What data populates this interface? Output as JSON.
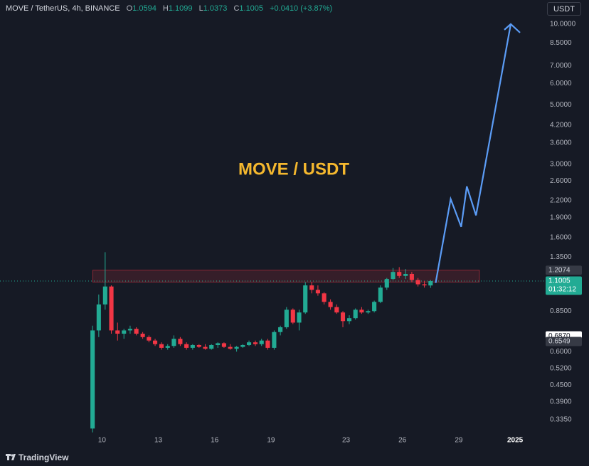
{
  "header": {
    "symbol": "MOVE / TetherUS, 4h, BINANCE",
    "fields": [
      {
        "key": "O",
        "value": "1.0594"
      },
      {
        "key": "H",
        "value": "1.1099"
      },
      {
        "key": "L",
        "value": "1.0373"
      },
      {
        "key": "C",
        "value": "1.1005"
      }
    ],
    "change": "+0.0410 (+3.87%)"
  },
  "currency": "USDT",
  "brand": "TradingView",
  "chart_data": {
    "type": "candlestick",
    "title": "MOVE / USDT",
    "log_scale": true,
    "grid": false,
    "up_color": "#22ab94",
    "down_color": "#f23645",
    "x": [
      9.5,
      9.83,
      10.17,
      10.5,
      10.83,
      11.17,
      11.5,
      11.83,
      12.17,
      12.5,
      12.83,
      13.17,
      13.5,
      13.83,
      14.17,
      14.5,
      14.83,
      15.17,
      15.5,
      15.83,
      16.17,
      16.5,
      16.83,
      17.17,
      17.5,
      17.83,
      18.17,
      18.5,
      18.83,
      19.17,
      19.5,
      19.83,
      20.17,
      20.5,
      20.83,
      21.17,
      21.5,
      21.83,
      22.17,
      22.5,
      22.83,
      23.17,
      23.5,
      23.83,
      24.17,
      24.5,
      24.83,
      25.17,
      25.5,
      25.83,
      26.17,
      26.5,
      26.83,
      27.17,
      27.5
    ],
    "open": [
      0.31,
      0.72,
      0.9,
      1.05,
      0.72,
      0.7,
      0.72,
      0.73,
      0.7,
      0.68,
      0.66,
      0.64,
      0.62,
      0.63,
      0.67,
      0.64,
      0.62,
      0.635,
      0.625,
      0.615,
      0.635,
      0.645,
      0.625,
      0.615,
      0.625,
      0.635,
      0.65,
      0.64,
      0.66,
      0.62,
      0.71,
      0.74,
      0.86,
      0.77,
      0.84,
      1.06,
      1.02,
      0.99,
      0.92,
      0.88,
      0.84,
      0.78,
      0.8,
      0.86,
      0.84,
      0.85,
      0.92,
      1.04,
      1.12,
      1.19,
      1.15,
      1.17,
      1.11,
      1.07,
      1.0594
    ],
    "high": [
      0.75,
      0.98,
      1.41,
      1.06,
      0.77,
      0.73,
      0.75,
      0.74,
      0.71,
      0.69,
      0.67,
      0.65,
      0.64,
      0.69,
      0.68,
      0.65,
      0.64,
      0.64,
      0.64,
      0.64,
      0.65,
      0.65,
      0.64,
      0.63,
      0.64,
      0.66,
      0.66,
      0.67,
      0.67,
      0.72,
      0.75,
      0.88,
      0.87,
      0.86,
      1.09,
      1.09,
      1.06,
      1.0,
      0.94,
      0.9,
      0.85,
      0.82,
      0.87,
      0.88,
      0.86,
      0.93,
      1.06,
      1.13,
      1.23,
      1.24,
      1.22,
      1.19,
      1.13,
      1.1,
      1.1099
    ],
    "low": [
      0.3,
      0.68,
      0.86,
      0.7,
      0.66,
      0.67,
      0.7,
      0.69,
      0.67,
      0.65,
      0.63,
      0.61,
      0.61,
      0.62,
      0.63,
      0.61,
      0.61,
      0.62,
      0.61,
      0.61,
      0.62,
      0.62,
      0.61,
      0.6,
      0.62,
      0.63,
      0.63,
      0.63,
      0.61,
      0.61,
      0.69,
      0.73,
      0.76,
      0.72,
      0.83,
      0.99,
      0.97,
      0.9,
      0.86,
      0.83,
      0.74,
      0.76,
      0.79,
      0.83,
      0.83,
      0.84,
      0.91,
      1.02,
      1.11,
      1.13,
      1.12,
      1.09,
      1.05,
      1.04,
      1.0373
    ],
    "close": [
      0.72,
      0.9,
      1.05,
      0.72,
      0.7,
      0.72,
      0.73,
      0.7,
      0.68,
      0.66,
      0.64,
      0.62,
      0.63,
      0.67,
      0.64,
      0.62,
      0.635,
      0.625,
      0.615,
      0.635,
      0.645,
      0.625,
      0.615,
      0.625,
      0.635,
      0.65,
      0.64,
      0.66,
      0.62,
      0.71,
      0.74,
      0.86,
      0.77,
      0.84,
      1.06,
      1.02,
      0.99,
      0.92,
      0.88,
      0.84,
      0.78,
      0.8,
      0.86,
      0.84,
      0.85,
      0.92,
      1.04,
      1.12,
      1.19,
      1.15,
      1.17,
      1.11,
      1.07,
      1.06,
      1.1005
    ],
    "xlim": [
      4.57,
      33.55
    ],
    "ylim": [
      0.265,
      12.3
    ],
    "xticks": [
      10,
      13,
      16,
      19,
      23,
      26,
      29,
      {
        "value": 32,
        "label": "2025"
      }
    ],
    "yticks": [
      {
        "value": 10,
        "label": "10.0000"
      },
      {
        "value": 8.5,
        "label": "8.5000"
      },
      {
        "value": 7,
        "label": "7.0000"
      },
      {
        "value": 6,
        "label": "6.0000"
      },
      {
        "value": 5,
        "label": "5.0000"
      },
      {
        "value": 4.2,
        "label": "4.2000"
      },
      {
        "value": 3.6,
        "label": "3.6000"
      },
      {
        "value": 3,
        "label": "3.0000"
      },
      {
        "value": 2.6,
        "label": "2.6000"
      },
      {
        "value": 2.2,
        "label": "2.2000"
      },
      {
        "value": 1.9,
        "label": "1.9000"
      },
      {
        "value": 1.6,
        "label": "1.6000"
      },
      {
        "value": 1.35,
        "label": "1.3500"
      },
      {
        "value": 0.85,
        "label": "0.8500"
      },
      {
        "value": 0.6,
        "label": "0.6000"
      },
      {
        "value": 0.52,
        "label": "0.5200"
      },
      {
        "value": 0.45,
        "label": "0.4500"
      },
      {
        "value": 0.39,
        "label": "0.3900"
      },
      {
        "value": 0.335,
        "label": "0.3350"
      }
    ],
    "zone": {
      "x": [
        9.51,
        30.1
      ],
      "y": [
        1.09,
        1.2074
      ],
      "color": "#f23645"
    },
    "projection": {
      "x": [
        27.77,
        28.57,
        29.13,
        29.43,
        29.92,
        31.77
      ],
      "y": [
        1.083,
        2.226,
        1.754,
        2.48,
        1.934,
        10
      ],
      "color": "#5b9cf6"
    },
    "price_labels": [
      {
        "value": 1.2074,
        "label": "1.2074",
        "color": "#363a45",
        "text_color": "#d1d4dc"
      },
      {
        "value": 1.1005,
        "label": "1.1005",
        "color": "#22ab94",
        "text_color": "#ffffff",
        "countdown": "01:32:12"
      },
      {
        "value": 0.687,
        "label": "0.6870",
        "color": "#ffffff",
        "text_color": "#131722"
      },
      {
        "value": 0.6549,
        "label": "0.6549",
        "color": "#363a45",
        "text_color": "#d1d4dc"
      }
    ]
  }
}
